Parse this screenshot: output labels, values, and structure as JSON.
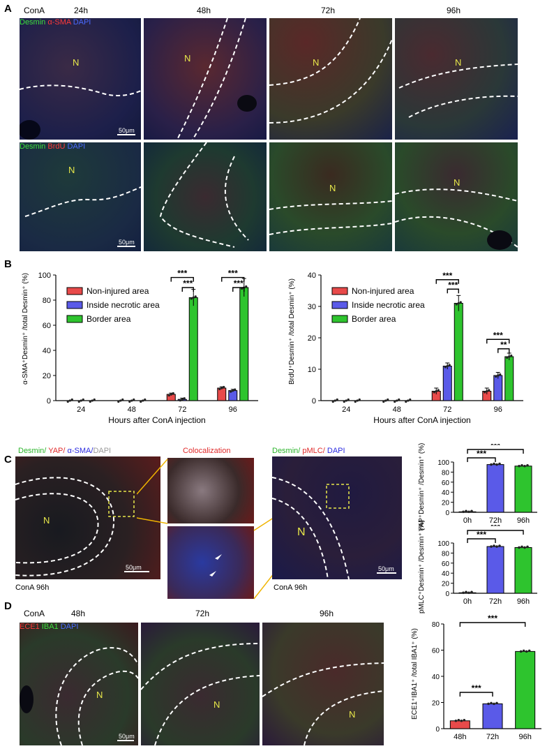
{
  "panels": {
    "A": "A",
    "B": "B",
    "C": "C",
    "D": "D"
  },
  "panelA": {
    "conA": "ConA",
    "times": [
      "24h",
      "48h",
      "72h",
      "96h"
    ],
    "stain_row1": {
      "desmin": "Desmin",
      "sma": "α-SMA",
      "dapi": "DAPI"
    },
    "stain_row2": {
      "desmin": "Desmin",
      "brdu": "BrdU",
      "dapi": "DAPI"
    },
    "n_label": "N",
    "scale": "50μm"
  },
  "panelB": {
    "xlabel": "Hours after ConA injection",
    "legend": [
      "Non-injured area",
      "Inside necrotic area",
      "Border area"
    ],
    "colors": {
      "red": "#e84a4a",
      "blue": "#5a5ae8",
      "green": "#2ec42e"
    },
    "sig": "***",
    "sig2": "**"
  },
  "panelC": {
    "stain_left": {
      "desmin": "Desmin/",
      "yap": " YAP/",
      "sma": " α-SMA/",
      "dapi": "DAPI"
    },
    "coloc": "Colocalization",
    "stain_right": {
      "desmin": "Desmin/",
      "pmlc": " pMLC/",
      "dapi": " DAPI"
    },
    "conA96": "ConA 96h",
    "n_label": "N",
    "scale": "50μm",
    "sig": "***"
  },
  "panelD": {
    "conA": "ConA",
    "times": [
      "48h",
      "72h",
      "96h"
    ],
    "stain": {
      "ece1": "ECE1",
      "iba1": " IBA1",
      "dapi": " DAPI"
    },
    "n_label": "N",
    "scale": "50μm",
    "sig": "***"
  },
  "chart_data": [
    {
      "type": "bar",
      "title": "",
      "ylabel": "α-SMA⁺Desmin⁺ /total Desmin⁺ (%)",
      "xlabel": "Hours after ConA injection",
      "categories": [
        "24",
        "48",
        "72",
        "96"
      ],
      "ylim": [
        0,
        100
      ],
      "yticks": [
        0,
        20,
        40,
        60,
        80,
        100
      ],
      "series": [
        {
          "name": "Non-injured area",
          "values": [
            0,
            0,
            5,
            10
          ]
        },
        {
          "name": "Inside necrotic area",
          "values": [
            0,
            0,
            1,
            8
          ]
        },
        {
          "name": "Border area",
          "values": [
            0,
            0,
            82,
            90
          ]
        }
      ],
      "legend": "top-left"
    },
    {
      "type": "bar",
      "title": "",
      "ylabel": "BrdU⁺Desmin⁺ /total Desmin⁺ (%)",
      "xlabel": "Hours after ConA injection",
      "categories": [
        "24",
        "48",
        "72",
        "96"
      ],
      "ylim": [
        0,
        40
      ],
      "yticks": [
        0,
        10,
        20,
        30,
        40
      ],
      "series": [
        {
          "name": "Non-injured area",
          "values": [
            0,
            0,
            3,
            3
          ]
        },
        {
          "name": "Inside necrotic area",
          "values": [
            0,
            0,
            11,
            8
          ]
        },
        {
          "name": "Border area",
          "values": [
            0,
            0,
            31,
            14
          ]
        }
      ],
      "legend": "top-left"
    },
    {
      "type": "bar",
      "ylabel": "YAP⁺Desmin⁺ /Desmin⁺ (%)",
      "categories": [
        "0h",
        "72h",
        "96h"
      ],
      "values": [
        1,
        95,
        92
      ],
      "ylim": [
        0,
        100
      ],
      "yticks": [
        0,
        20,
        40,
        60,
        80,
        100
      ]
    },
    {
      "type": "bar",
      "ylabel": "pMLC⁺Desmin⁺ /Desmin⁺ (%)",
      "categories": [
        "0h",
        "72h",
        "96h"
      ],
      "values": [
        1,
        93,
        91
      ],
      "ylim": [
        0,
        100
      ],
      "yticks": [
        0,
        20,
        40,
        60,
        80,
        100
      ]
    },
    {
      "type": "bar",
      "ylabel": "ECE1⁺IBA1⁺ /total IBA1⁺ (%)",
      "categories": [
        "48h",
        "72h",
        "96h"
      ],
      "values": [
        6,
        19,
        59
      ],
      "ylim": [
        0,
        80
      ],
      "yticks": [
        0,
        20,
        40,
        60,
        80
      ]
    }
  ]
}
